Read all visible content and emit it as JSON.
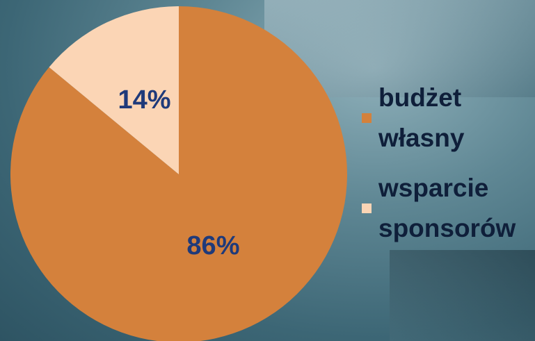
{
  "chart_data": {
    "type": "pie",
    "categories": [
      "budżet własny",
      "wsparcie sponsorów"
    ],
    "values": [
      86,
      14
    ],
    "value_labels": [
      "86%",
      "14%"
    ],
    "colors": [
      "#d4813c",
      "#fbd5b5"
    ],
    "label_color": "#1f3a7a"
  }
}
